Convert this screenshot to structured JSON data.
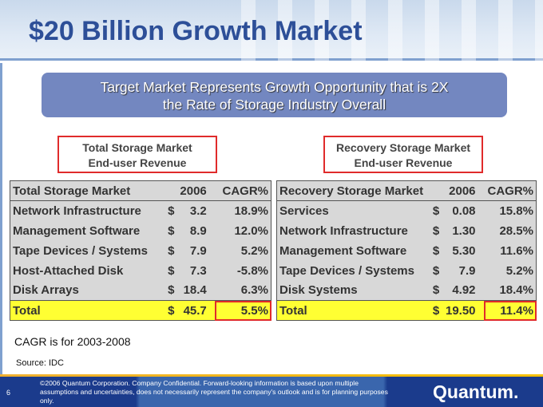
{
  "title": "$20 Billion Growth Market",
  "banner": {
    "line1": "Target Market Represents Growth Opportunity that is 2X",
    "line2": "the Rate of Storage Industry Overall"
  },
  "left_box": {
    "line1": "Total Storage Market",
    "line2": "End-user Revenue"
  },
  "right_box": {
    "line1": "Recovery Storage Market",
    "line2": "End-user Revenue"
  },
  "left_table": {
    "headers": [
      "Total Storage Market",
      "2006",
      "CAGR%"
    ],
    "rows": [
      [
        "Network Infrastructure",
        "$",
        "3.2",
        "18.9%"
      ],
      [
        "Management Software",
        "$",
        "8.9",
        "12.0%"
      ],
      [
        "Tape Devices / Systems",
        "$",
        "7.9",
        "5.2%"
      ],
      [
        "Host-Attached Disk",
        "$",
        "7.3",
        "-5.8%"
      ],
      [
        "Disk Arrays",
        "$",
        "18.4",
        "6.3%"
      ]
    ],
    "total": [
      "Total",
      "$",
      "45.7",
      "5.5%"
    ]
  },
  "right_table": {
    "headers": [
      "Recovery Storage Market",
      "2006",
      "CAGR%"
    ],
    "rows": [
      [
        "Services",
        "$",
        "0.08",
        "15.8%"
      ],
      [
        "Network Infrastructure",
        "$",
        "1.30",
        "28.5%"
      ],
      [
        "Management Software",
        "$",
        "5.30",
        "11.6%"
      ],
      [
        "Tape Devices / Systems",
        "$",
        "7.9",
        "5.2%"
      ],
      [
        "Disk Systems",
        "$",
        "4.92",
        "18.4%"
      ]
    ],
    "total": [
      "Total",
      "$",
      "19.50",
      "11.4%"
    ]
  },
  "note": "CAGR is for 2003-2008",
  "source": "Source: IDC",
  "footer": {
    "page": "6",
    "legal": "©2006 Quantum Corporation. Company Confidential. Forward-looking information is based upon multiple assumptions and uncertainties, does not necessarily represent the company's outlook and is for planning purposes only.",
    "logo": "Quantum."
  }
}
